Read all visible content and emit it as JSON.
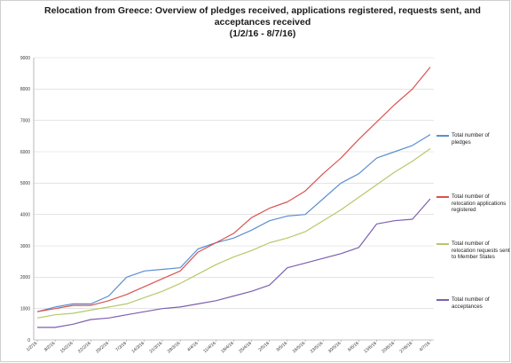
{
  "chart_data": {
    "type": "line",
    "title_lines": [
      "Relocation from Greece: Overview of pledges received, applications registered, requests sent, and",
      "acceptances received",
      "(1/2/16 - 8/7/16)"
    ],
    "xlabel": "",
    "ylabel": "",
    "ylim": [
      0,
      9000
    ],
    "yticks": [
      0,
      1000,
      2000,
      3000,
      4000,
      5000,
      6000,
      7000,
      8000,
      9000
    ],
    "xtick_labels": [
      "1/2/16",
      "8/2/16",
      "15/2/16",
      "22/2/16",
      "29/2/16",
      "7/3/16",
      "14/3/16",
      "21/3/16",
      "28/3/16",
      "4/4/16",
      "11/4/16",
      "18/4/16",
      "25/4/16",
      "2/5/16",
      "9/5/16",
      "16/5/16",
      "23/5/16",
      "30/5/16",
      "6/6/16",
      "13/6/16",
      "20/6/16",
      "27/6/16",
      "4/7/16"
    ],
    "grid": "horizontal",
    "legend_position": "right",
    "series": [
      {
        "name": "Total number of pledges",
        "color": "#5b8fd0",
        "values": [
          900,
          1050,
          1150,
          1150,
          1400,
          2000,
          2200,
          2250,
          2300,
          2900,
          3100,
          3250,
          3500,
          3800,
          3950,
          4000,
          4500,
          5000,
          5300,
          5800,
          6000,
          6200,
          6550
        ]
      },
      {
        "name": "Total number of relocation applications registered",
        "color": "#d9534f",
        "values": [
          900,
          1000,
          1100,
          1100,
          1250,
          1450,
          1700,
          1950,
          2200,
          2800,
          3100,
          3400,
          3900,
          4200,
          4400,
          4750,
          5300,
          5800,
          6400,
          6950,
          7500,
          8000,
          8700
        ]
      },
      {
        "name": "Total number of relocation requests sent to Member States",
        "color": "#b5c96a",
        "values": [
          700,
          800,
          850,
          950,
          1050,
          1150,
          1350,
          1550,
          1800,
          2100,
          2400,
          2650,
          2850,
          3100,
          3250,
          3450,
          3800,
          4150,
          4550,
          4950,
          5350,
          5700,
          6100
        ]
      },
      {
        "name": "Total number of acceptances",
        "color": "#7d5fb0",
        "values": [
          400,
          400,
          500,
          650,
          700,
          800,
          900,
          1000,
          1050,
          1150,
          1250,
          1400,
          1550,
          1750,
          2300,
          2450,
          2600,
          2750,
          2950,
          3700,
          3800,
          3850,
          4500
        ]
      }
    ]
  }
}
